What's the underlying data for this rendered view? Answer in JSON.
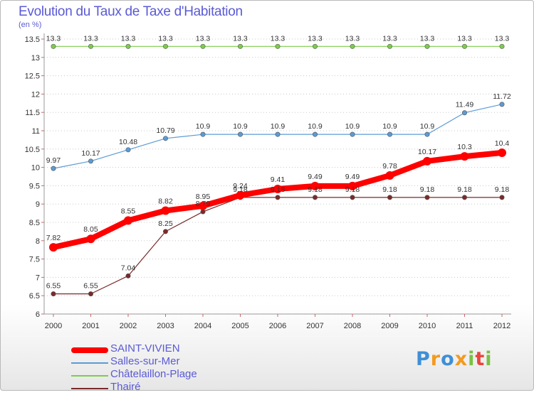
{
  "header": {
    "title": "Evolution du Taux de Taxe d'Habitation",
    "subtitle": "(en %)"
  },
  "chart_data": {
    "type": "line",
    "x": [
      "2000",
      "2001",
      "2002",
      "2003",
      "2004",
      "2005",
      "2006",
      "2007",
      "2008",
      "2009",
      "2010",
      "2011",
      "2012"
    ],
    "ylim": [
      6,
      13.5
    ],
    "yticks": [
      "6",
      "6.5",
      "7",
      "7.5",
      "8",
      "8.5",
      "9",
      "9.5",
      "10",
      "10.5",
      "11",
      "11.5",
      "12",
      "12.5",
      "13",
      "13.5"
    ],
    "grid": "horizontal-dotted",
    "series": [
      {
        "name": "SAINT-VIVIEN",
        "color": "#ff0000",
        "values": [
          7.82,
          8.05,
          8.55,
          8.82,
          8.95,
          9.24,
          9.41,
          9.49,
          9.49,
          9.78,
          10.17,
          10.3,
          10.4
        ],
        "labels": [
          "7.82",
          "8.05",
          "8.55",
          "8.82",
          "8.95",
          "9.24",
          "9.41",
          "9.49",
          "9.49",
          "9.78",
          "10.17",
          "10.3",
          "10.4"
        ]
      },
      {
        "name": "Salles-sur-Mer",
        "color": "#5b9bd5",
        "values": [
          9.97,
          10.17,
          10.48,
          10.79,
          10.9,
          10.9,
          10.9,
          10.9,
          10.9,
          10.9,
          10.9,
          11.49,
          11.72
        ],
        "labels": [
          "9.97",
          "10.17",
          "10.48",
          "10.79",
          "10.9",
          "10.9",
          "10.9",
          "10.9",
          "10.9",
          "10.9",
          "10.9",
          "11.49",
          "11.72"
        ]
      },
      {
        "name": "Châtelaillon-Plage",
        "color": "#7ccc4a",
        "values": [
          13.3,
          13.3,
          13.3,
          13.3,
          13.3,
          13.3,
          13.3,
          13.3,
          13.3,
          13.3,
          13.3,
          13.3,
          13.3
        ],
        "labels": [
          "13.3",
          "13.3",
          "13.3",
          "13.3",
          "13.3",
          "13.3",
          "13.3",
          "13.3",
          "13.3",
          "13.3",
          "13.3",
          "13.3",
          "13.3"
        ]
      },
      {
        "name": "Thairé",
        "color": "#7a2a2a",
        "values": [
          6.55,
          6.55,
          7.04,
          8.25,
          8.79,
          9.18,
          9.18,
          9.18,
          9.18,
          9.18,
          9.18,
          9.18,
          9.18
        ],
        "labels": [
          "6.55",
          "6.55",
          "7.04",
          "8.25",
          "8.79",
          "9.18",
          "9.18",
          "9.18",
          "9.18",
          "9.18",
          "9.18",
          "9.18",
          "9.18"
        ]
      }
    ],
    "legend_position": "bottom-left"
  },
  "logo": {
    "letters": [
      "P",
      "r",
      "o",
      "x",
      "i",
      "t",
      "i"
    ],
    "colors": [
      "#3e8fd6",
      "#f39a1e",
      "#3e8fd6",
      "#f39a1e",
      "#7ac143",
      "#e9443f",
      "#7ac143"
    ]
  }
}
